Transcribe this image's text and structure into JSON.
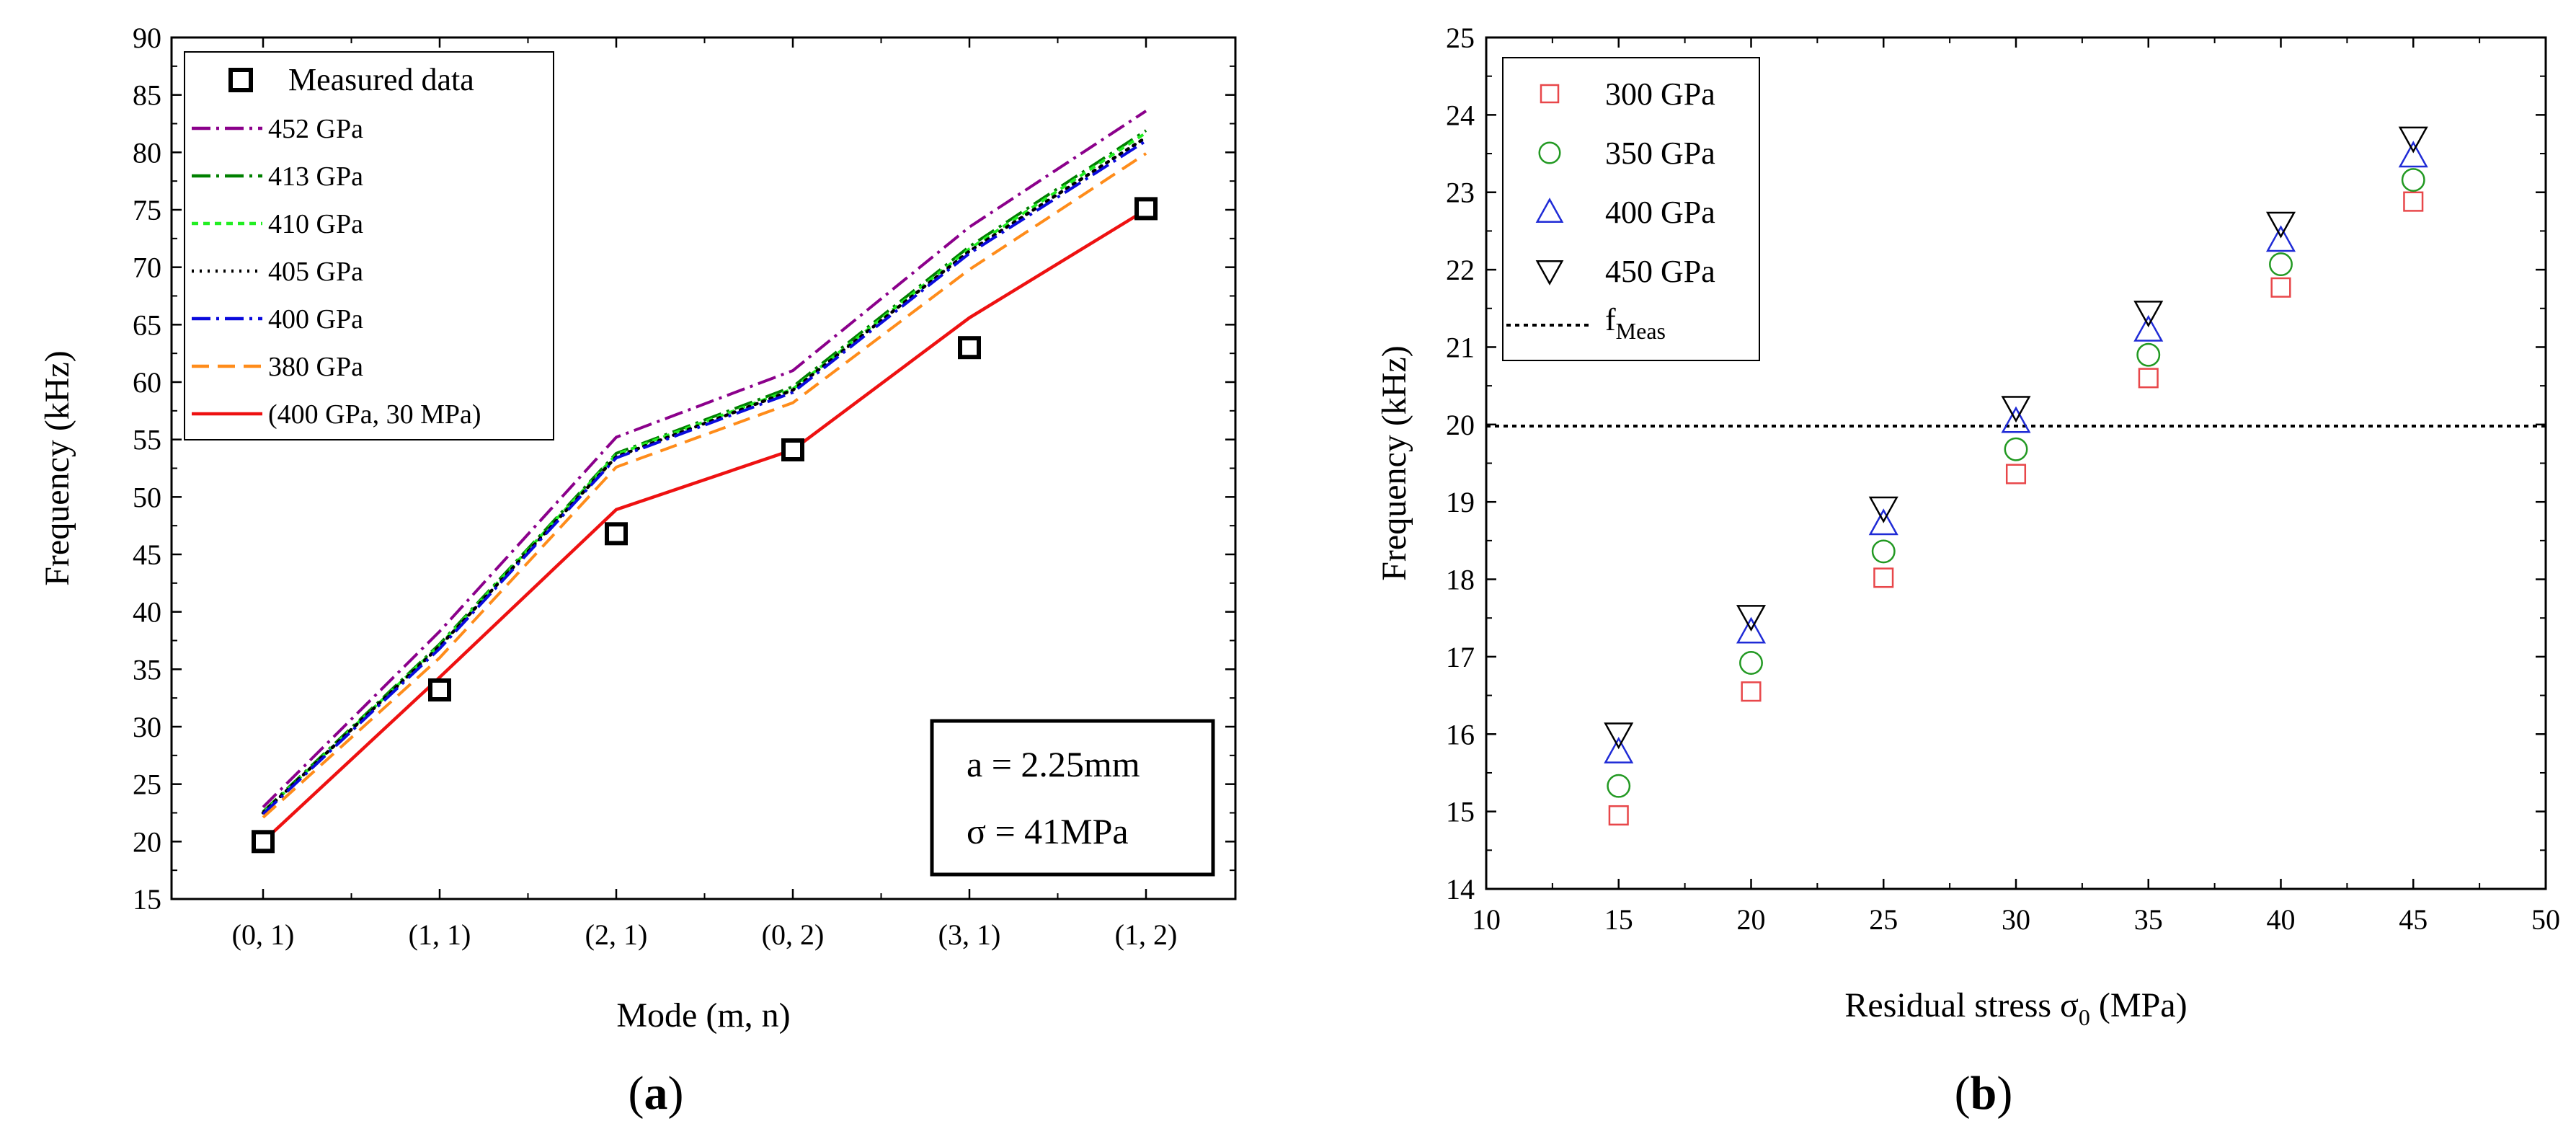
{
  "chart_data": [
    {
      "type": "line",
      "panel_label": "a",
      "xlabel": "Mode (m, n)",
      "ylabel": "Frequency (kHz)",
      "categories": [
        "(0, 1)",
        "(1, 1)",
        "(2, 1)",
        "(0, 2)",
        "(3, 1)",
        "(1, 2)"
      ],
      "ylim": [
        15,
        90
      ],
      "yticks": [
        "15",
        "20",
        "25",
        "30",
        "35",
        "40",
        "45",
        "50",
        "55",
        "60",
        "65",
        "70",
        "75",
        "80",
        "85",
        "90"
      ],
      "grid": false,
      "legend_position": "top-left",
      "series": [
        {
          "name": "Measured data",
          "style": "square-marker",
          "color": "#000000",
          "values": [
            20.0,
            33.2,
            46.8,
            54.1,
            63.0,
            75.1
          ]
        },
        {
          "name": "452 GPa",
          "style": "dash-dot",
          "color": "#8b008b",
          "values": [
            23.0,
            38.3,
            55.2,
            61.0,
            73.5,
            83.6
          ]
        },
        {
          "name": "413 GPa",
          "style": "dash-dot",
          "color": "#008000",
          "values": [
            22.6,
            37.2,
            53.8,
            59.6,
            71.8,
            81.9
          ]
        },
        {
          "name": "410 GPa",
          "style": "short-dash",
          "color": "#22ee22",
          "values": [
            22.5,
            37.1,
            53.7,
            59.4,
            71.6,
            81.7
          ]
        },
        {
          "name": "405 GPa",
          "style": "dotted",
          "color": "#000000",
          "values": [
            22.5,
            37.0,
            53.5,
            59.3,
            71.4,
            81.3
          ]
        },
        {
          "name": "400 GPa",
          "style": "dash-dot",
          "color": "#0a0adc",
          "values": [
            22.4,
            36.8,
            53.4,
            59.1,
            71.2,
            81.0
          ]
        },
        {
          "name": "380 GPa",
          "style": "dashed",
          "color": "#ff8c1a",
          "values": [
            22.1,
            36.0,
            52.6,
            58.2,
            69.8,
            79.9
          ]
        },
        {
          "name": "(400 GPa, 30 MPa)",
          "style": "solid",
          "color": "#ee1111",
          "values": [
            20.0,
            34.3,
            48.9,
            54.1,
            65.6,
            75.0
          ]
        }
      ],
      "annotations": [
        "a = 2.25mm",
        "σ = 41MPa"
      ]
    },
    {
      "type": "scatter",
      "panel_label": "b",
      "xlabel": "Residual stress σ",
      "xlabel_subscript": "0",
      "xlabel_unit": "(MPa)",
      "ylabel": "Frequency (kHz)",
      "xlim": [
        10,
        50
      ],
      "ylim": [
        14,
        25
      ],
      "xticks": [
        "10",
        "15",
        "20",
        "25",
        "30",
        "35",
        "40",
        "45",
        "50"
      ],
      "yticks": [
        "14",
        "15",
        "16",
        "17",
        "18",
        "19",
        "20",
        "21",
        "22",
        "23",
        "24",
        "25"
      ],
      "grid": false,
      "legend_position": "top-left",
      "x": [
        15,
        20,
        25,
        30,
        35,
        40,
        45
      ],
      "series": [
        {
          "name": "300 GPa",
          "marker": "square",
          "color": "#e8474a",
          "values": [
            14.95,
            16.55,
            18.02,
            19.36,
            20.6,
            21.77,
            22.88
          ]
        },
        {
          "name": "350 GPa",
          "marker": "circle",
          "color": "#229922",
          "values": [
            15.33,
            16.92,
            18.36,
            19.68,
            20.9,
            22.07,
            23.16
          ]
        },
        {
          "name": "400 GPa",
          "marker": "triangle-up",
          "color": "#1f2bd6",
          "values": [
            15.77,
            17.32,
            18.72,
            20.04,
            21.22,
            22.38,
            23.47
          ]
        },
        {
          "name": "450 GPa",
          "marker": "triangle-down",
          "color": "#000000",
          "values": [
            16.0,
            17.52,
            18.92,
            20.22,
            21.45,
            22.6,
            23.7
          ]
        }
      ],
      "reference_line": {
        "name": "f",
        "subscript": "Meas",
        "style": "dotted",
        "color": "#000000",
        "y": 19.98
      }
    }
  ]
}
